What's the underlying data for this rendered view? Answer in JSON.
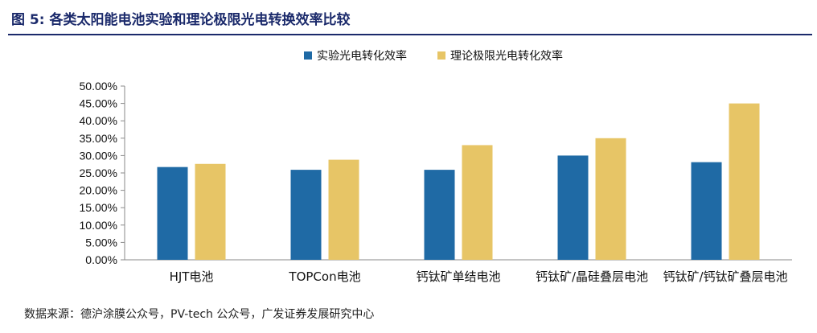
{
  "figure": {
    "title": "图 5:  各类太阳能电池实验和理论极限光电转换效率比较",
    "source": "数据来源：德沪涂膜公众号，PV-tech 公众号，广发证券发展研究中心"
  },
  "colors": {
    "series_1": "#1f6aa5",
    "series_2": "#e7c566",
    "brand": "#1b2a6b"
  },
  "chart_data": {
    "type": "bar",
    "categories": [
      "HJT电池",
      "TOPCon电池",
      "钙钛矿单结电池",
      "钙钛矿/晶硅叠层电池",
      "钙钛矿/钙钛矿叠层电池"
    ],
    "series": [
      {
        "name": "实验光电转化效率",
        "values": [
          26.7,
          25.9,
          25.9,
          30.0,
          28.1
        ]
      },
      {
        "name": "理论极限光电转化效率",
        "values": [
          27.6,
          28.8,
          33.0,
          35.0,
          45.0
        ]
      }
    ],
    "y_ticks": [
      "0.00%",
      "5.00%",
      "10.00%",
      "15.00%",
      "20.00%",
      "25.00%",
      "30.00%",
      "35.00%",
      "40.00%",
      "45.00%",
      "50.00%"
    ],
    "ylim": [
      0,
      50
    ],
    "legend_position": "top-center",
    "grid": false
  }
}
